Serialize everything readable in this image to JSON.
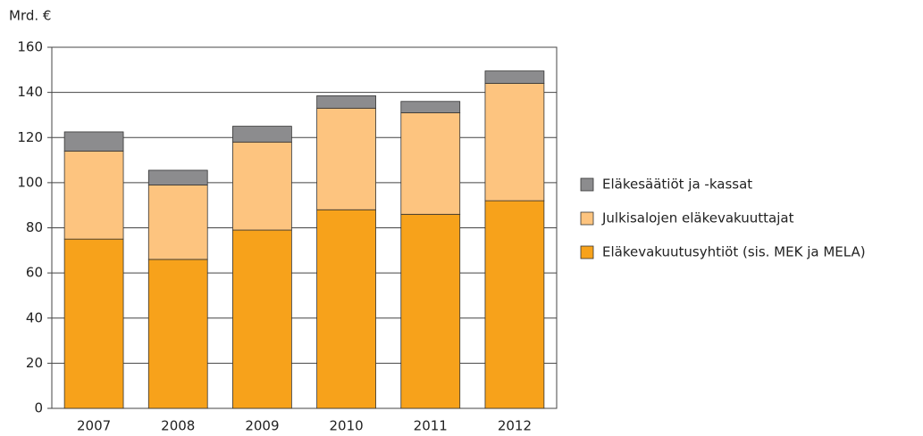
{
  "chart_data": {
    "type": "stacked_bar",
    "y_label": "Mrd. €",
    "categories": [
      "2007",
      "2008",
      "2009",
      "2010",
      "2011",
      "2012"
    ],
    "series": [
      {
        "name": "Eläkevakuutusyhtiöt (sis. MEK ja MELA)",
        "color": "#f7a21b",
        "values": [
          75,
          66,
          79,
          88,
          86,
          92
        ]
      },
      {
        "name": "Julkisalojen eläkevakuuttajat",
        "color": "#fdc47f",
        "values": [
          39,
          33,
          39,
          45,
          45,
          52
        ]
      },
      {
        "name": "Eläkesäätiöt ja -kassat",
        "color": "#8c8c8e",
        "values": [
          8.5,
          6.5,
          7,
          5.5,
          5,
          5.5
        ]
      }
    ],
    "ylim": [
      0,
      160
    ],
    "yticks": [
      0,
      20,
      40,
      60,
      80,
      100,
      120,
      140,
      160
    ],
    "grid": true,
    "legend": "right"
  }
}
